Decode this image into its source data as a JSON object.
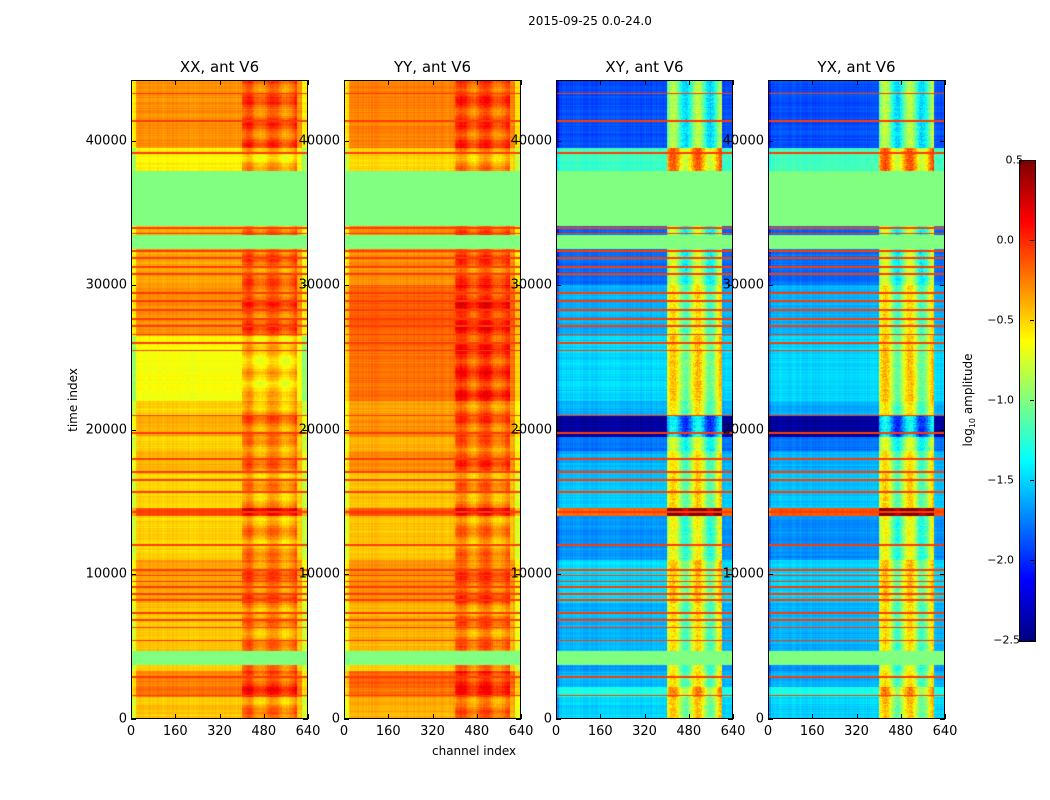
{
  "chart_data": {
    "type": "heatmap",
    "suptitle": "2015-09-25 0.0-24.0",
    "xlabel": "channel index",
    "ylabel": "time index",
    "xlim": [
      0,
      640
    ],
    "ylim": [
      0,
      44200
    ],
    "xticks": [
      "0",
      "160",
      "320",
      "480",
      "640"
    ],
    "xtick_values": [
      0,
      160,
      320,
      480,
      640
    ],
    "yticks": [
      "0",
      "10000",
      "20000",
      "30000",
      "40000"
    ],
    "ytick_values": [
      0,
      10000,
      20000,
      30000,
      40000
    ],
    "panels": [
      {
        "title": "XX, ant V6",
        "kind": "xx"
      },
      {
        "title": "YY, ant V6",
        "kind": "yy"
      },
      {
        "title": "XY, ant V6",
        "kind": "xy"
      },
      {
        "title": "YX, ant V6",
        "kind": "yx"
      }
    ],
    "time_segments": [
      {
        "t0": 0,
        "t1": 1500,
        "xx": -0.45,
        "yy": -0.4,
        "cross": -1.5
      },
      {
        "t0": 1500,
        "t1": 2200,
        "xx": -0.2,
        "yy": -0.2,
        "cross": -1.3
      },
      {
        "t0": 2200,
        "t1": 3300,
        "xx": -0.25,
        "yy": -0.15,
        "cross": -1.6
      },
      {
        "t0": 3300,
        "t1": 3700,
        "xx": -0.5,
        "yy": -0.5,
        "cross": -1.7
      },
      {
        "t0": 3700,
        "t1": 4700,
        "xx": -1.0,
        "yy": -1.0,
        "cross": -1.0,
        "flagged": true
      },
      {
        "t0": 4700,
        "t1": 8000,
        "xx": -0.45,
        "yy": -0.4,
        "cross": -1.6
      },
      {
        "t0": 8000,
        "t1": 11000,
        "xx": -0.35,
        "yy": -0.3,
        "cross": -1.5
      },
      {
        "t0": 11000,
        "t1": 14000,
        "xx": -0.5,
        "yy": -0.45,
        "cross": -1.7
      },
      {
        "t0": 14000,
        "t1": 14600,
        "xx": -0.1,
        "yy": -0.1,
        "cross": -0.15
      },
      {
        "t0": 14600,
        "t1": 17000,
        "xx": -0.5,
        "yy": -0.45,
        "cross": -1.55
      },
      {
        "t0": 17000,
        "t1": 18500,
        "xx": -0.4,
        "yy": -0.3,
        "cross": -1.6
      },
      {
        "t0": 18500,
        "t1": 19500,
        "xx": -0.5,
        "yy": -0.4,
        "cross": -1.8
      },
      {
        "t0": 19500,
        "t1": 21000,
        "xx": -0.4,
        "yy": -0.3,
        "cross": -2.4
      },
      {
        "t0": 21000,
        "t1": 22000,
        "xx": -0.5,
        "yy": -0.35,
        "cross": -1.6
      },
      {
        "t0": 22000,
        "t1": 26500,
        "xx": -0.65,
        "yy": -0.2,
        "cross": -1.5
      },
      {
        "t0": 26500,
        "t1": 30000,
        "xx": -0.3,
        "yy": -0.15,
        "cross": -1.6
      },
      {
        "t0": 30000,
        "t1": 32500,
        "xx": -0.35,
        "yy": -0.3,
        "cross": -1.8
      },
      {
        "t0": 32500,
        "t1": 33500,
        "xx": -1.0,
        "yy": -1.0,
        "cross": -1.0,
        "flagged": true
      },
      {
        "t0": 33500,
        "t1": 34100,
        "xx": -0.4,
        "yy": -0.3,
        "cross": -1.8
      },
      {
        "t0": 34100,
        "t1": 37900,
        "xx": -1.0,
        "yy": -1.0,
        "cross": -1.0,
        "flagged": true
      },
      {
        "t0": 37900,
        "t1": 39500,
        "xx": -0.6,
        "yy": -0.5,
        "cross": -1.2
      },
      {
        "t0": 39500,
        "t1": 44200,
        "xx": -0.3,
        "yy": -0.25,
        "cross": -1.9
      }
    ],
    "red_lines": [
      1600,
      2900,
      3900,
      4600,
      5400,
      6300,
      6800,
      7300,
      8200,
      8600,
      9100,
      9500,
      9900,
      10300,
      12000,
      14300,
      15700,
      16500,
      17100,
      18000,
      19800,
      21000,
      25500,
      26000,
      26600,
      27200,
      27700,
      28300,
      28900,
      29500,
      30800,
      31300,
      31900,
      32400,
      33600,
      34000,
      37900,
      39200,
      41400,
      43300
    ],
    "colorbar": {
      "colormap": "jet",
      "vmin": -2.5,
      "vmax": 0.5,
      "ticks": [
        0.5,
        0.0,
        -0.5,
        -1.0,
        -1.5,
        -2.0,
        -2.5
      ],
      "tick_labels": [
        "0.5",
        "0.0",
        "−0.5",
        "−1.0",
        "−1.5",
        "−2.0",
        "−2.5"
      ],
      "label_prefix": "log",
      "label_sub": "10",
      "label_suffix": " amplitude"
    }
  }
}
